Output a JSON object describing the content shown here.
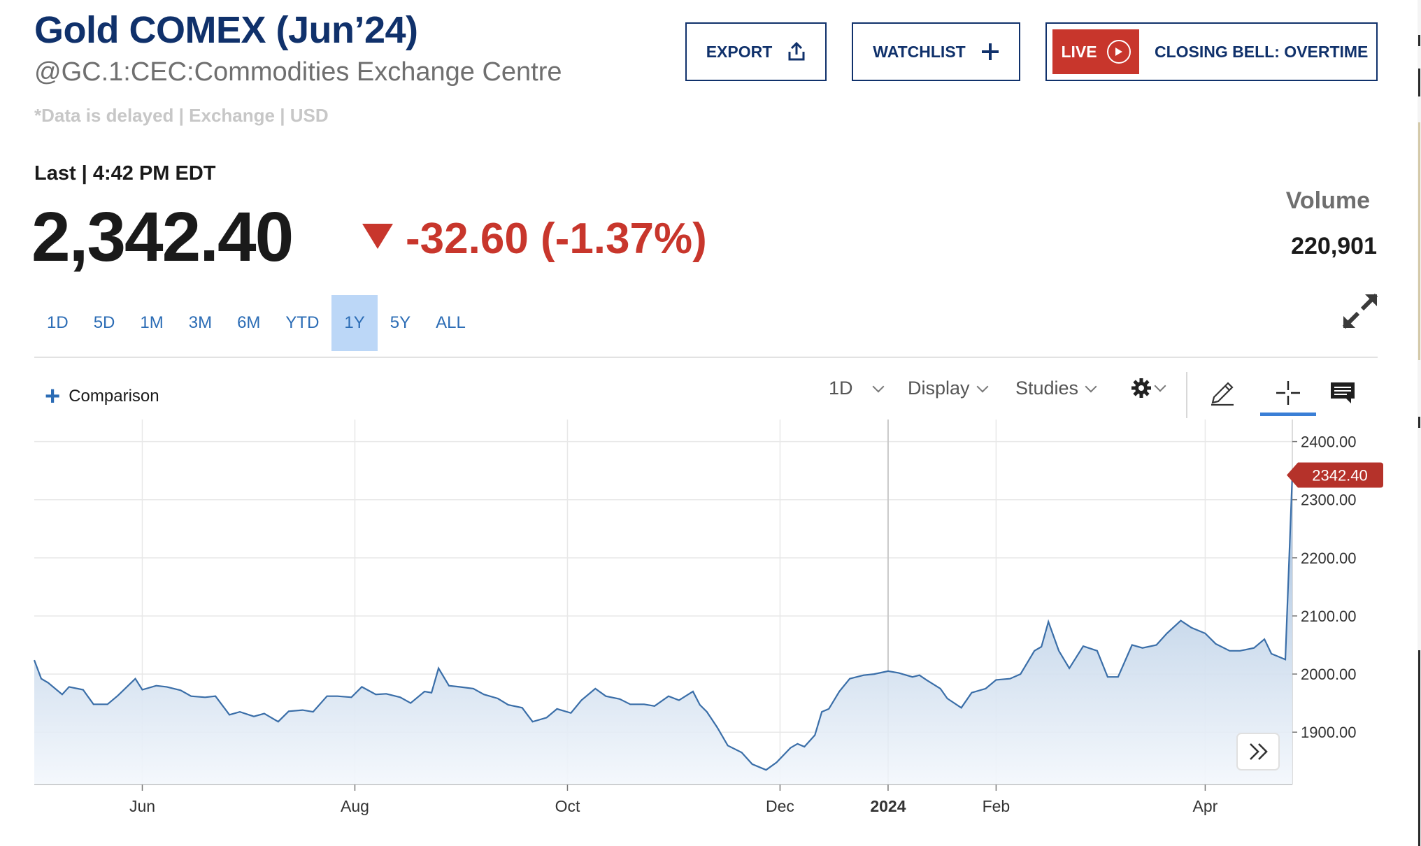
{
  "header": {
    "title": "Gold COMEX (Jun’24)",
    "subtitle": "@GC.1:CEC:Commodities Exchange Centre",
    "note": "*Data is delayed | Exchange | USD"
  },
  "buttons": {
    "export": "EXPORT",
    "watchlist": "WATCHLIST",
    "live": "LIVE",
    "closing_bell": "CLOSING BELL: OVERTIME"
  },
  "quote": {
    "last_label": "Last | 4:42 PM EDT",
    "price": "2,342.40",
    "change": "-32.60 (-1.37%)",
    "volume_label": "Volume",
    "volume": "220,901"
  },
  "ranges": [
    "1D",
    "5D",
    "1M",
    "3M",
    "6M",
    "YTD",
    "1Y",
    "5Y",
    "ALL"
  ],
  "active_range": "1Y",
  "toolbar": {
    "comparison": "Comparison",
    "interval": "1D",
    "display": "Display",
    "studies": "Studies"
  },
  "icons": [
    "export-icon",
    "plus-icon",
    "play-icon",
    "expand-icon",
    "gear-icon",
    "pencil-icon",
    "crosshair-icon",
    "comment-icon",
    "double-chevron-right-icon"
  ],
  "colors": {
    "brand": "#10316b",
    "accent": "#2b6cb5",
    "negative": "#c8362c",
    "line": "#3a6ea8",
    "active_range_bg": "#bcd7f7"
  },
  "chart_data": {
    "type": "area",
    "title": "",
    "xlabel": "",
    "ylabel": "",
    "x_ticks": [
      "Jun",
      "Aug",
      "Oct",
      "Dec",
      "2024",
      "Feb",
      "Apr"
    ],
    "y_ticks": [
      "2400.00",
      "2300.00",
      "2200.00",
      "2100.00",
      "2000.00",
      "1900.00"
    ],
    "ylim": [
      1810,
      2438
    ],
    "xlim": [
      "2023-05-01",
      "2024-04-26"
    ],
    "grid": true,
    "last_value_label": "2342.40",
    "series": [
      {
        "points": [
          [
            "2023-05-01",
            2024
          ],
          [
            "2023-05-03",
            1992
          ],
          [
            "2023-05-05",
            1985
          ],
          [
            "2023-05-09",
            1965
          ],
          [
            "2023-05-11",
            1978
          ],
          [
            "2023-05-15",
            1973
          ],
          [
            "2023-05-18",
            1948
          ],
          [
            "2023-05-22",
            1948
          ],
          [
            "2023-05-25",
            1963
          ],
          [
            "2023-05-30",
            1992
          ],
          [
            "2023-06-01",
            1973
          ],
          [
            "2023-06-05",
            1980
          ],
          [
            "2023-06-08",
            1978
          ],
          [
            "2023-06-12",
            1972
          ],
          [
            "2023-06-15",
            1962
          ],
          [
            "2023-06-19",
            1960
          ],
          [
            "2023-06-22",
            1962
          ],
          [
            "2023-06-26",
            1930
          ],
          [
            "2023-06-29",
            1935
          ],
          [
            "2023-07-03",
            1927
          ],
          [
            "2023-07-06",
            1932
          ],
          [
            "2023-07-10",
            1918
          ],
          [
            "2023-07-13",
            1936
          ],
          [
            "2023-07-17",
            1938
          ],
          [
            "2023-07-20",
            1935
          ],
          [
            "2023-07-24",
            1962
          ],
          [
            "2023-07-27",
            1962
          ],
          [
            "2023-07-31",
            1960
          ],
          [
            "2023-08-03",
            1978
          ],
          [
            "2023-08-07",
            1965
          ],
          [
            "2023-08-10",
            1966
          ],
          [
            "2023-08-14",
            1960
          ],
          [
            "2023-08-17",
            1950
          ],
          [
            "2023-08-21",
            1970
          ],
          [
            "2023-08-23",
            1968
          ],
          [
            "2023-08-25",
            2010
          ],
          [
            "2023-08-28",
            1980
          ],
          [
            "2023-08-31",
            1978
          ],
          [
            "2023-09-04",
            1975
          ],
          [
            "2023-09-07",
            1965
          ],
          [
            "2023-09-11",
            1958
          ],
          [
            "2023-09-14",
            1947
          ],
          [
            "2023-09-18",
            1942
          ],
          [
            "2023-09-21",
            1918
          ],
          [
            "2023-09-25",
            1925
          ],
          [
            "2023-09-28",
            1940
          ],
          [
            "2023-10-02",
            1933
          ],
          [
            "2023-10-05",
            1955
          ],
          [
            "2023-10-09",
            1975
          ],
          [
            "2023-10-12",
            1962
          ],
          [
            "2023-10-16",
            1957
          ],
          [
            "2023-10-19",
            1948
          ],
          [
            "2023-10-23",
            1948
          ],
          [
            "2023-10-26",
            1945
          ],
          [
            "2023-10-30",
            1962
          ],
          [
            "2023-11-02",
            1955
          ],
          [
            "2023-11-06",
            1970
          ],
          [
            "2023-11-08",
            1947
          ],
          [
            "2023-11-10",
            1935
          ],
          [
            "2023-11-13",
            1908
          ],
          [
            "2023-11-16",
            1877
          ],
          [
            "2023-11-20",
            1865
          ],
          [
            "2023-11-23",
            1845
          ],
          [
            "2023-11-27",
            1835
          ],
          [
            "2023-11-30",
            1848
          ],
          [
            "2023-12-04",
            1873
          ],
          [
            "2023-12-06",
            1880
          ],
          [
            "2023-12-08",
            1875
          ],
          [
            "2023-12-11",
            1895
          ],
          [
            "2023-12-13",
            1935
          ],
          [
            "2023-12-15",
            1940
          ],
          [
            "2023-12-18",
            1970
          ],
          [
            "2023-12-21",
            1992
          ],
          [
            "2023-12-25",
            1998
          ],
          [
            "2023-12-28",
            2000
          ],
          [
            "2024-01-01",
            2005
          ],
          [
            "2024-01-04",
            2002
          ],
          [
            "2024-01-08",
            1995
          ],
          [
            "2024-01-10",
            1998
          ],
          [
            "2024-01-12",
            1990
          ],
          [
            "2024-01-16",
            1975
          ],
          [
            "2024-01-18",
            1958
          ],
          [
            "2024-01-22",
            1942
          ],
          [
            "2024-01-25",
            1968
          ],
          [
            "2024-01-29",
            1975
          ],
          [
            "2024-02-01",
            1990
          ],
          [
            "2024-02-05",
            1992
          ],
          [
            "2024-02-08",
            2000
          ],
          [
            "2024-02-12",
            2040
          ],
          [
            "2024-02-14",
            2047
          ],
          [
            "2024-02-16",
            2090
          ],
          [
            "2024-02-19",
            2040
          ],
          [
            "2024-02-22",
            2010
          ],
          [
            "2024-02-26",
            2048
          ],
          [
            "2024-03-01",
            2040
          ],
          [
            "2024-03-04",
            1995
          ],
          [
            "2024-03-07",
            1995
          ],
          [
            "2024-03-11",
            2050
          ],
          [
            "2024-03-14",
            2045
          ],
          [
            "2024-03-18",
            2050
          ],
          [
            "2024-03-21",
            2070
          ],
          [
            "2024-03-25",
            2092
          ],
          [
            "2024-03-28",
            2080
          ],
          [
            "2024-04-01",
            2070
          ],
          [
            "2024-04-04",
            2052
          ],
          [
            "2024-04-08",
            2040
          ],
          [
            "2024-04-11",
            2040
          ],
          [
            "2024-04-15",
            2045
          ],
          [
            "2024-04-18",
            2060
          ],
          [
            "2024-04-20",
            2035
          ],
          [
            "2024-04-22",
            2030
          ],
          [
            "2024-04-24",
            2025
          ],
          [
            "2024-04-26",
            2342.4
          ]
        ]
      }
    ]
  }
}
